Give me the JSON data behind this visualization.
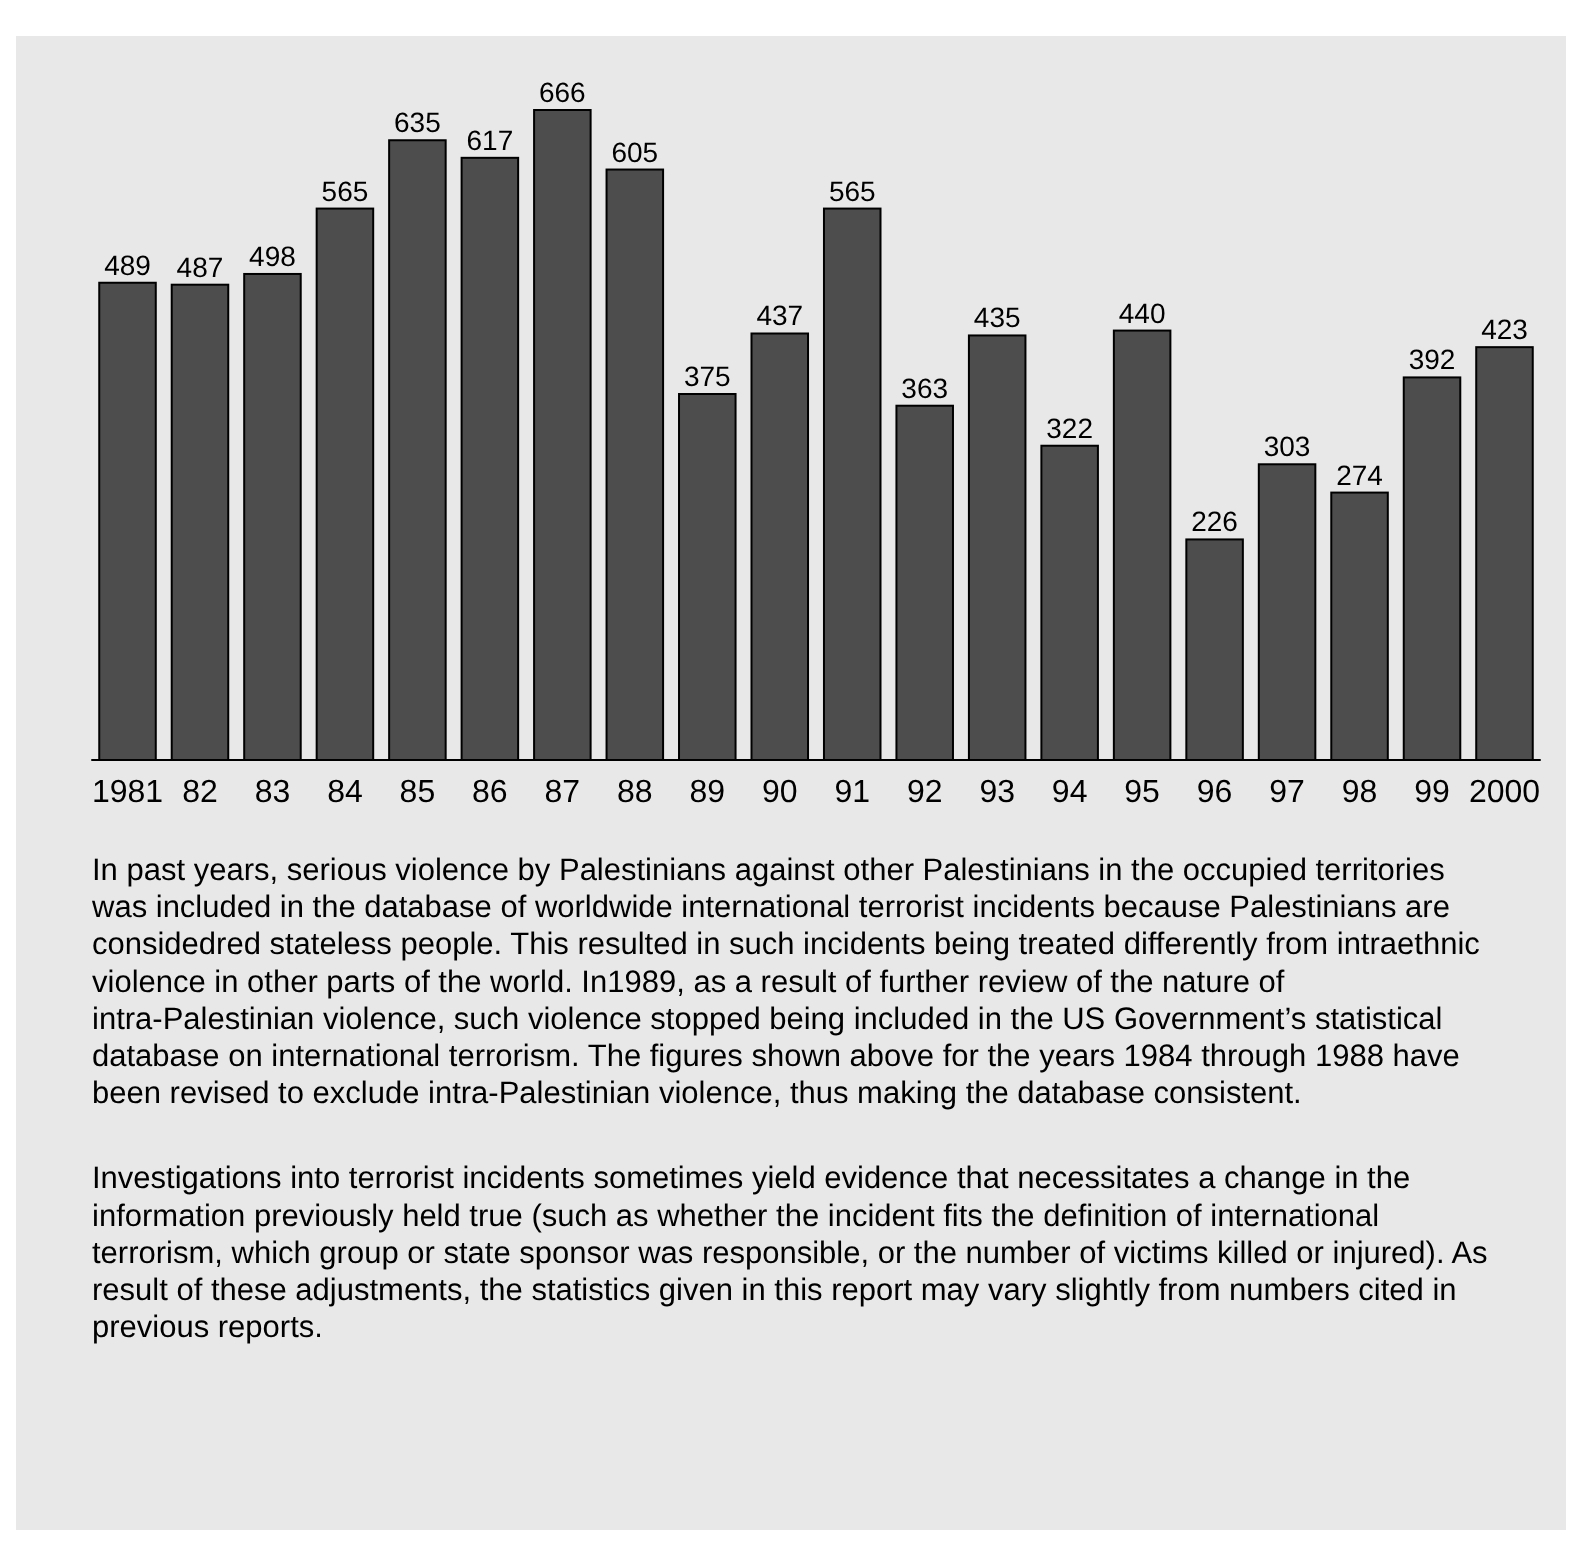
{
  "chart_data": {
    "type": "bar",
    "categories": [
      "1981",
      "82",
      "83",
      "84",
      "85",
      "86",
      "87",
      "88",
      "89",
      "90",
      "91",
      "92",
      "93",
      "94",
      "95",
      "96",
      "97",
      "98",
      "99",
      "2000"
    ],
    "values": [
      489,
      487,
      498,
      565,
      635,
      617,
      666,
      605,
      375,
      437,
      565,
      363,
      435,
      322,
      440,
      226,
      303,
      274,
      392,
      423
    ],
    "color": "#4d4d4d",
    "data_labels": true,
    "annotations": [
      "In past years, serious violence by Palestinians against other Palestinians in the occupied territories was included in the database of worldwide international terrorist incidents because Palestinians are considedred stateless people. This resulted in such incidents being treated differently from intraethnic violence in other parts of the world. In1989, as a result of further review of the nature of intra-Palestinian violence, such violence stopped being included in the US Government’s statistical database on international terrorism. The figures shown above for the years 1984 through 1988 have been revised to exclude intra-Palestinian violence, thus making the database consistent.",
      "Investigations into terrorist incidents sometimes yield evidence that necessitates a change in the information previously held true (such as whether the incident fits the definition of international terrorism, which group or state sponsor was responsible, or the number of victims killed or injured). As result of these adjustments, the statistics given in this report may vary slightly from numbers cited in previous reports."
    ]
  }
}
